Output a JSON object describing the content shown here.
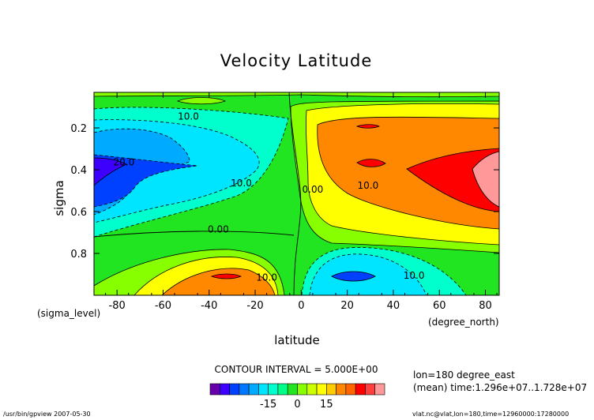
{
  "chart_data": {
    "type": "heatmap",
    "title": "Velocity Latitude",
    "xlabel": "latitude",
    "ylabel": "sigma",
    "x_unit": "(degree_north)",
    "y_unit": "(sigma_level)",
    "xlim": [
      -90,
      86
    ],
    "ylim": [
      1.0,
      0.03
    ],
    "x_ticks": [
      -80,
      -60,
      -40,
      -20,
      0,
      20,
      40,
      60,
      80
    ],
    "y_ticks": [
      0.2,
      0.4,
      0.6,
      0.8
    ],
    "contour_labels": [
      {
        "text": "10.0",
        "x": -49,
        "y": 0.16
      },
      {
        "text": "20.0",
        "x": -77,
        "y": 0.38
      },
      {
        "text": "10.0",
        "x": -26,
        "y": 0.48
      },
      {
        "text": "0.00",
        "x": 5,
        "y": 0.51
      },
      {
        "text": "0.00",
        "x": -36,
        "y": 0.7
      },
      {
        "text": "10.0",
        "x": 29,
        "y": 0.49
      },
      {
        "text": "10.0",
        "x": -15,
        "y": 0.93
      },
      {
        "text": "10.0",
        "x": 49,
        "y": 0.92
      }
    ],
    "contour_interval_text": "CONTOUR INTERVAL = 5.000E+00",
    "colorbar": {
      "colors": [
        "#6600aa",
        "#3d00ff",
        "#0040ff",
        "#0077ff",
        "#00aaff",
        "#00e5ff",
        "#00ffcc",
        "#00ff88",
        "#20e520",
        "#88ff00",
        "#ccff00",
        "#ffff00",
        "#ffcc00",
        "#ff8800",
        "#ff6600",
        "#ff0000",
        "#ff4040",
        "#ff9999"
      ],
      "tick_labels": [
        "-15",
        "0",
        "15"
      ],
      "tick_values": [
        -15,
        0,
        15
      ],
      "range": [
        -45,
        45
      ]
    },
    "info_lines": [
      "lon=180 degree_east",
      "(mean) time:1.296e+07..1.728e+07"
    ],
    "footer_left": "/usr/bin/gpview  2007-05-30",
    "footer_right": "vlat.nc@vlat,lon=180,time=12960000:17280000"
  }
}
